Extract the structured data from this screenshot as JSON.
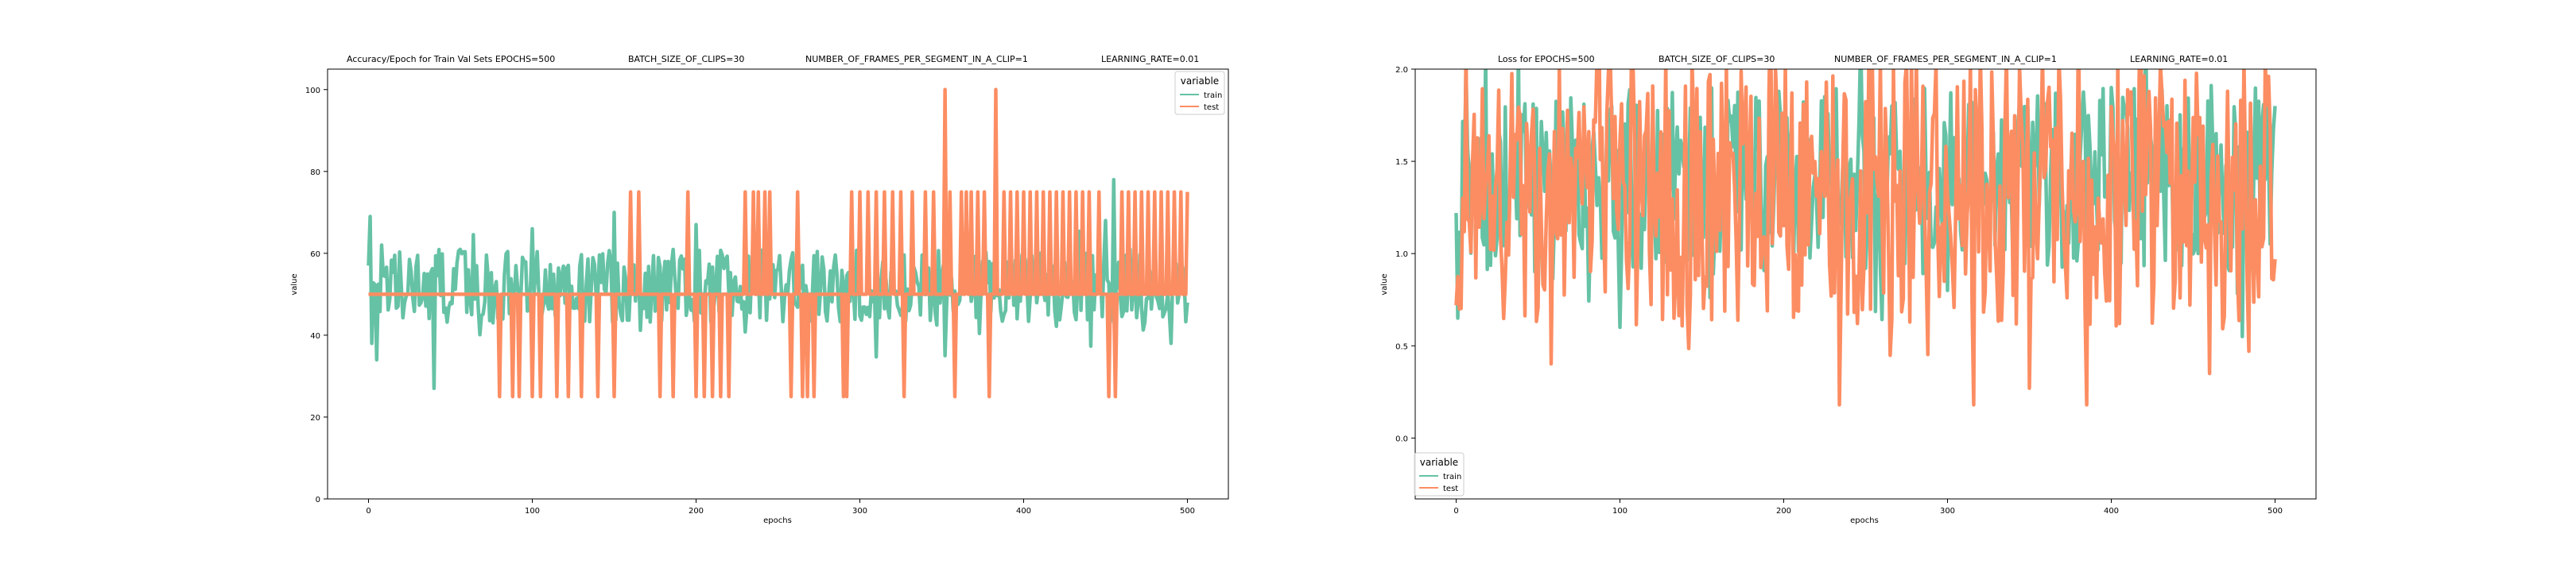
{
  "chart_data": [
    {
      "type": "line",
      "title_parts": [
        "Accuracy/Epoch for Train Val Sets EPOCHS=500",
        "BATCH_SIZE_OF_CLIPS=30",
        "NUMBER_OF_FRAMES_PER_SEGMENT_IN_A_CLIP=1",
        "LEARNING_RATE=0.01"
      ],
      "xlabel": "epochs",
      "ylabel": "value",
      "xlim": [
        -25,
        525
      ],
      "ylim": [
        0,
        105
      ],
      "xticks": [
        0,
        100,
        200,
        300,
        400,
        500
      ],
      "yticks": [
        0,
        20,
        40,
        60,
        80,
        100
      ],
      "legend": {
        "title": "variable",
        "placement": "upper right",
        "entries": [
          "train",
          "test"
        ]
      },
      "grid": false,
      "series": [
        {
          "name": "train",
          "color": "#66c2a5",
          "kind": "noisy",
          "center": 52,
          "spread": 9,
          "min": 27,
          "max": 78,
          "anchors": [
            [
              0,
              57
            ],
            [
              1,
              69
            ],
            [
              2,
              38
            ],
            [
              5,
              34
            ],
            [
              8,
              62
            ],
            [
              40,
              27
            ],
            [
              100,
              66
            ],
            [
              150,
              70
            ],
            [
              200,
              67
            ],
            [
              330,
              46
            ],
            [
              352,
              35
            ],
            [
              450,
              68
            ],
            [
              455,
              78
            ],
            [
              490,
              38
            ],
            [
              500,
              48
            ]
          ]
        },
        {
          "name": "test",
          "color": "#fc8d62",
          "kind": "levels",
          "base": 50,
          "levels": [
            25,
            50,
            75,
            100
          ],
          "events": [
            [
              80,
              25
            ],
            [
              88,
              25
            ],
            [
              92,
              25
            ],
            [
              100,
              25
            ],
            [
              105,
              25
            ],
            [
              115,
              25
            ],
            [
              122,
              25
            ],
            [
              130,
              25
            ],
            [
              140,
              25
            ],
            [
              150,
              25
            ],
            [
              160,
              75
            ],
            [
              165,
              75
            ],
            [
              178,
              25
            ],
            [
              186,
              25
            ],
            [
              195,
              75
            ],
            [
              200,
              25
            ],
            [
              205,
              25
            ],
            [
              210,
              25
            ],
            [
              215,
              25
            ],
            [
              220,
              25
            ],
            [
              230,
              75
            ],
            [
              235,
              75
            ],
            [
              238,
              75
            ],
            [
              242,
              75
            ],
            [
              245,
              75
            ],
            [
              258,
              25
            ],
            [
              262,
              75
            ],
            [
              265,
              25
            ],
            [
              268,
              25
            ],
            [
              272,
              25
            ],
            [
              290,
              25
            ],
            [
              292,
              25
            ],
            [
              295,
              75
            ],
            [
              300,
              75
            ],
            [
              305,
              75
            ],
            [
              310,
              75
            ],
            [
              315,
              75
            ],
            [
              320,
              75
            ],
            [
              325,
              75
            ],
            [
              327,
              25
            ],
            [
              332,
              75
            ],
            [
              340,
              75
            ],
            [
              345,
              75
            ],
            [
              355,
              75
            ],
            [
              358,
              25
            ],
            [
              362,
              75
            ],
            [
              365,
              75
            ],
            [
              368,
              75
            ],
            [
              372,
              75
            ],
            [
              376,
              75
            ],
            [
              379,
              25
            ],
            [
              383,
              100
            ],
            [
              388,
              75
            ],
            [
              392,
              75
            ],
            [
              396,
              75
            ],
            [
              400,
              75
            ],
            [
              404,
              75
            ],
            [
              408,
              75
            ],
            [
              412,
              75
            ],
            [
              416,
              75
            ],
            [
              420,
              75
            ],
            [
              424,
              75
            ],
            [
              428,
              75
            ],
            [
              432,
              75
            ],
            [
              436,
              75
            ],
            [
              440,
              75
            ],
            [
              446,
              75
            ],
            [
              452,
              25
            ],
            [
              456,
              25
            ],
            [
              460,
              75
            ],
            [
              464,
              75
            ],
            [
              468,
              75
            ],
            [
              472,
              75
            ],
            [
              476,
              75
            ],
            [
              480,
              75
            ],
            [
              484,
              75
            ],
            [
              488,
              75
            ],
            [
              492,
              75
            ],
            [
              496,
              75
            ],
            [
              500,
              75
            ],
            [
              352,
              100
            ]
          ]
        }
      ]
    },
    {
      "type": "line",
      "title_parts": [
        "Loss for  EPOCHS=500",
        "BATCH_SIZE_OF_CLIPS=30",
        "NUMBER_OF_FRAMES_PER_SEGMENT_IN_A_CLIP=1",
        "LEARNING_RATE=0.01"
      ],
      "xlabel": "epochs",
      "ylabel": "value",
      "xlim": [
        -25,
        525
      ],
      "ylim": [
        -0.33,
        2.0
      ],
      "xticks": [
        0,
        100,
        200,
        300,
        400,
        500
      ],
      "yticks": [
        0.0,
        0.5,
        1.0,
        1.5,
        2.0
      ],
      "legend": {
        "title": "variable",
        "placement": "lower left",
        "entries": [
          "train",
          "test"
        ]
      },
      "grid": false,
      "series": [
        {
          "name": "train",
          "color": "#66c2a5",
          "kind": "noisy",
          "center": 1.4,
          "spread": 0.5,
          "min": 0.55,
          "max": 2.3,
          "anchors": [
            [
              0,
              1.22
            ],
            [
              1,
              0.65
            ],
            [
              3,
              0.85
            ],
            [
              6,
              2.0
            ],
            [
              10,
              1.5
            ],
            [
              100,
              0.6
            ],
            [
              200,
              1.6
            ],
            [
              300,
              0.8
            ],
            [
              400,
              1.9
            ],
            [
              480,
              0.55
            ],
            [
              500,
              1.8
            ]
          ]
        },
        {
          "name": "test",
          "color": "#fc8d62",
          "kind": "noisy",
          "center": 1.35,
          "spread": 0.75,
          "min": 0.18,
          "max": 2.6,
          "anchors": [
            [
              0,
              0.72
            ],
            [
              2,
              0.7
            ],
            [
              4,
              1.3
            ],
            [
              6,
              2.1
            ],
            [
              10,
              1.5
            ],
            [
              15,
              1.26
            ],
            [
              350,
              0.27
            ],
            [
              385,
              0.18
            ],
            [
              460,
              0.35
            ],
            [
              500,
              0.97
            ]
          ]
        }
      ]
    }
  ]
}
